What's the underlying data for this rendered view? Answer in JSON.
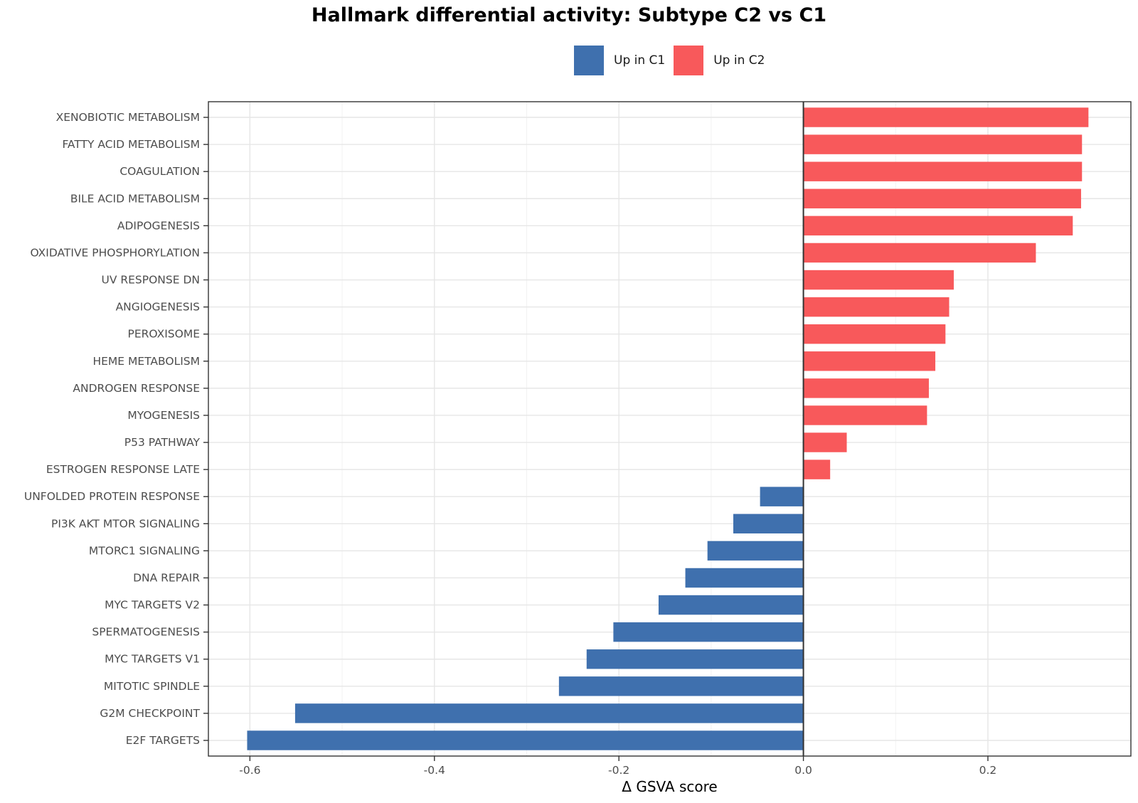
{
  "chart_data": {
    "type": "bar",
    "orientation": "horizontal",
    "title": "Hallmark differential activity: Subtype C2 vs C1",
    "xlabel": "Δ GSVA score",
    "ylabel": "",
    "xlim": [
      -0.645,
      0.355
    ],
    "xticks": [
      -0.6,
      -0.4,
      -0.2,
      0.0,
      0.2
    ],
    "xtick_labels": [
      "-0.6",
      "-0.4",
      "-0.2",
      "0.0",
      "0.2"
    ],
    "grid": true,
    "legend_position": "top",
    "legend": [
      {
        "label": "Up in C1",
        "color": "#3F70AE"
      },
      {
        "label": "Up in C2",
        "color": "#F8595B"
      }
    ],
    "categories": [
      "XENOBIOTIC METABOLISM",
      "FATTY ACID METABOLISM",
      "COAGULATION",
      "BILE ACID METABOLISM",
      "ADIPOGENESIS",
      "OXIDATIVE PHOSPHORYLATION",
      "UV RESPONSE DN",
      "ANGIOGENESIS",
      "PEROXISOME",
      "HEME METABOLISM",
      "ANDROGEN RESPONSE",
      "MYOGENESIS",
      "P53 PATHWAY",
      "ESTROGEN RESPONSE LATE",
      "UNFOLDED PROTEIN RESPONSE",
      "PI3K AKT MTOR SIGNALING",
      "MTORC1 SIGNALING",
      "DNA REPAIR",
      "MYC TARGETS V2",
      "SPERMATOGENESIS",
      "MYC TARGETS V1",
      "MITOTIC SPINDLE",
      "G2M CHECKPOINT",
      "E2F TARGETS"
    ],
    "values": [
      0.309,
      0.302,
      0.302,
      0.301,
      0.292,
      0.252,
      0.163,
      0.158,
      0.154,
      0.143,
      0.136,
      0.134,
      0.047,
      0.029,
      -0.047,
      -0.076,
      -0.104,
      -0.128,
      -0.157,
      -0.206,
      -0.235,
      -0.265,
      -0.551,
      -0.603
    ]
  }
}
